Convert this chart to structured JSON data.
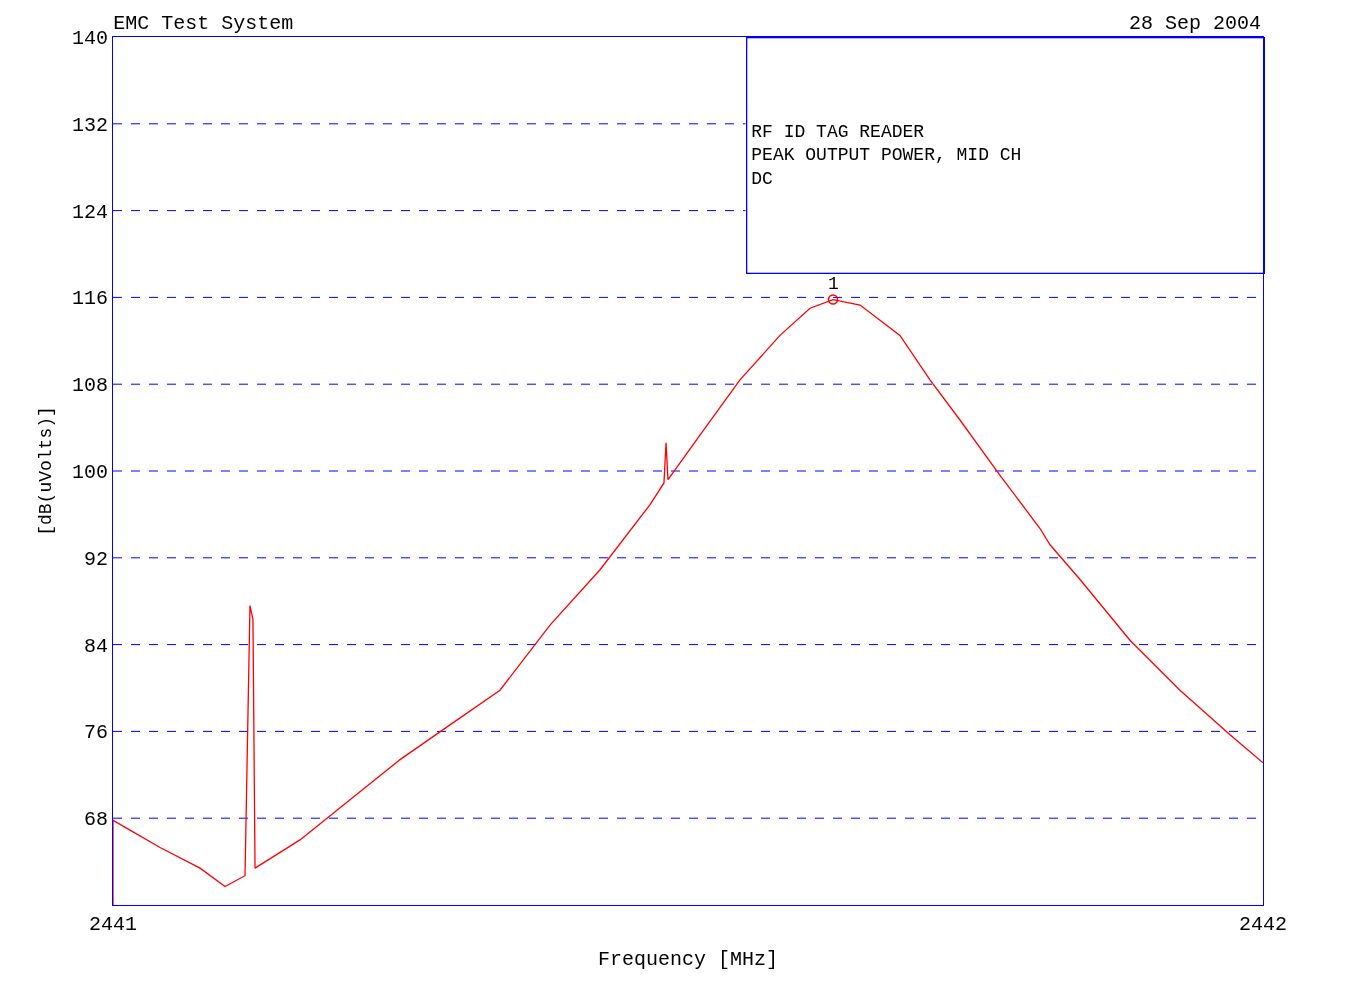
{
  "chart_data": {
    "type": "line",
    "title": "EMC Test System",
    "xlabel": "Frequency [MHz]",
    "ylabel": "[dB(uVolts)]",
    "annotations": [
      "28 Sep 2004",
      "RF ID TAG READER\nPEAK OUTPUT POWER, MID CH\nDC",
      {
        "text": "1",
        "x": 2441.6261,
        "y": 115.8
      }
    ],
    "series": [
      {
        "color": "#ff0000",
        "x": [
          2441.0,
          2441.0,
          2441.0148,
          2441.0409,
          2441.0757,
          2441.0974,
          2441.1148,
          2441.1191,
          2441.1217,
          2441.1235,
          2441.1626,
          2441.2061,
          2441.2496,
          2441.293,
          2441.3365,
          2441.38,
          2441.4235,
          2441.467,
          2441.4791,
          2441.4809,
          2441.4826,
          2441.5104,
          2441.5452,
          2441.58,
          2441.6061,
          2441.6261,
          2441.6496,
          2441.6843,
          2441.7104,
          2441.7365,
          2441.7713,
          2441.8061,
          2441.8148,
          2441.8409,
          2441.8843,
          2441.9278,
          2441.9713,
          2442.0
        ],
        "values": [
          60,
          67.8,
          66.9,
          65.3,
          63.4,
          61.7,
          62.7,
          87.6,
          86.3,
          63.4,
          66.0,
          69.7,
          73.4,
          76.6,
          79.8,
          85.8,
          90.9,
          96.9,
          98.9,
          102.6,
          99.2,
          103.3,
          108.4,
          112.5,
          115.0,
          115.8,
          115.3,
          112.5,
          108.4,
          104.7,
          99.6,
          94.7,
          93.2,
          90.0,
          84.4,
          79.8,
          75.7,
          73.1
        ]
      },
      {
        "type": "scatter",
        "color": "#ff0000",
        "marker": "circle",
        "x": [
          2441.6261
        ],
        "values": [
          115.8
        ]
      }
    ],
    "xlim": [
      2441,
      2442
    ],
    "xticks": [
      2441,
      2442
    ],
    "ylim": [
      60,
      140
    ],
    "yticks": [
      68,
      76,
      84,
      92,
      100,
      108,
      116,
      124,
      132,
      140
    ],
    "grid": "y",
    "line_style": "solid"
  }
}
